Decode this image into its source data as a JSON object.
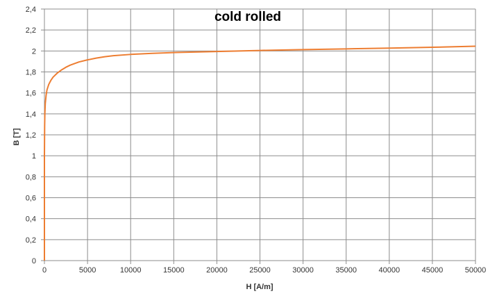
{
  "chart_data": {
    "type": "line",
    "title": "cold rolled",
    "xlabel": "H [A/m]",
    "ylabel": "B [T]",
    "xlim": [
      0,
      50000
    ],
    "ylim": [
      0,
      2.4
    ],
    "x_ticks": [
      "0",
      "5000",
      "10000",
      "15000",
      "20000",
      "25000",
      "30000",
      "35000",
      "40000",
      "45000",
      "50000"
    ],
    "y_ticks": [
      "0",
      "0,2",
      "0,4",
      "0,6",
      "0,8",
      "1",
      "1,2",
      "1,4",
      "1,6",
      "1,8",
      "2",
      "2,2",
      "2,4"
    ],
    "grid": true,
    "legend": "none",
    "series": [
      {
        "color": "#ed7d31",
        "x": [
          0,
          0,
          0,
          25,
          50,
          100,
          200,
          300,
          500,
          750,
          1000,
          1500,
          2000,
          2500,
          3000,
          4000,
          5000,
          6000,
          7000,
          8000,
          10000,
          12500,
          15000,
          20000,
          25000,
          30000,
          35000,
          40000,
          45000,
          50000
        ],
        "y": [
          0,
          0.5,
          1.0,
          1.28,
          1.4,
          1.5,
          1.58,
          1.63,
          1.68,
          1.72,
          1.75,
          1.79,
          1.82,
          1.845,
          1.865,
          1.895,
          1.915,
          1.932,
          1.945,
          1.955,
          1.967,
          1.977,
          1.985,
          1.995,
          2.005,
          2.013,
          2.02,
          2.027,
          2.035,
          2.045
        ]
      }
    ]
  }
}
